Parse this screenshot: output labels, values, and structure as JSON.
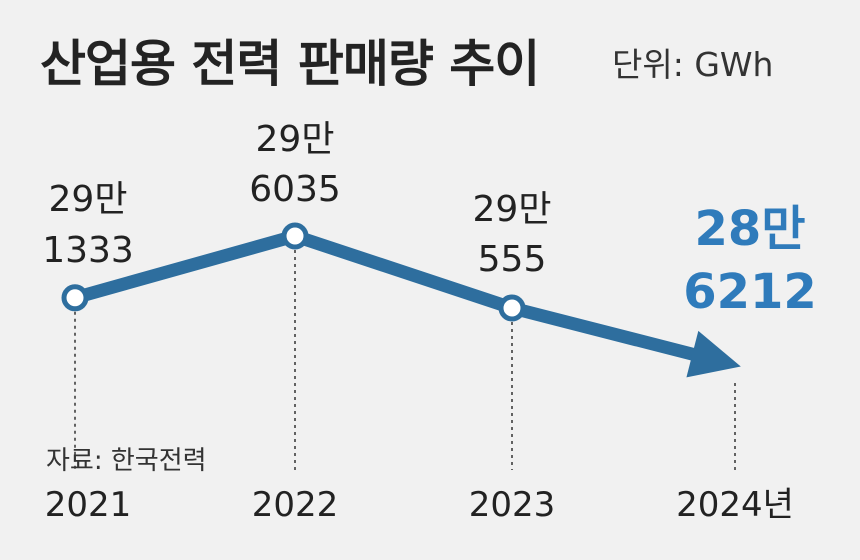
{
  "chart_data": {
    "type": "line",
    "title": "산업용 전력 판매량 추이",
    "unit_label": "단위: GWh",
    "source": "자료: 한국전력",
    "categories": [
      "2021",
      "2022",
      "2023",
      "2024년"
    ],
    "values": [
      291333,
      296035,
      290555,
      286212
    ],
    "data_labels": [
      [
        "29만",
        "1333"
      ],
      [
        "29만",
        "6035"
      ],
      [
        "29만",
        "555"
      ],
      [
        "28만",
        "6212"
      ]
    ],
    "highlight_index": 3,
    "colors": {
      "line": "#2e6e9e",
      "marker_fill": "#ffffff",
      "highlight_text": "#2f7bbb",
      "background": "#f1f1f1"
    },
    "grid": false,
    "legend": "none"
  }
}
